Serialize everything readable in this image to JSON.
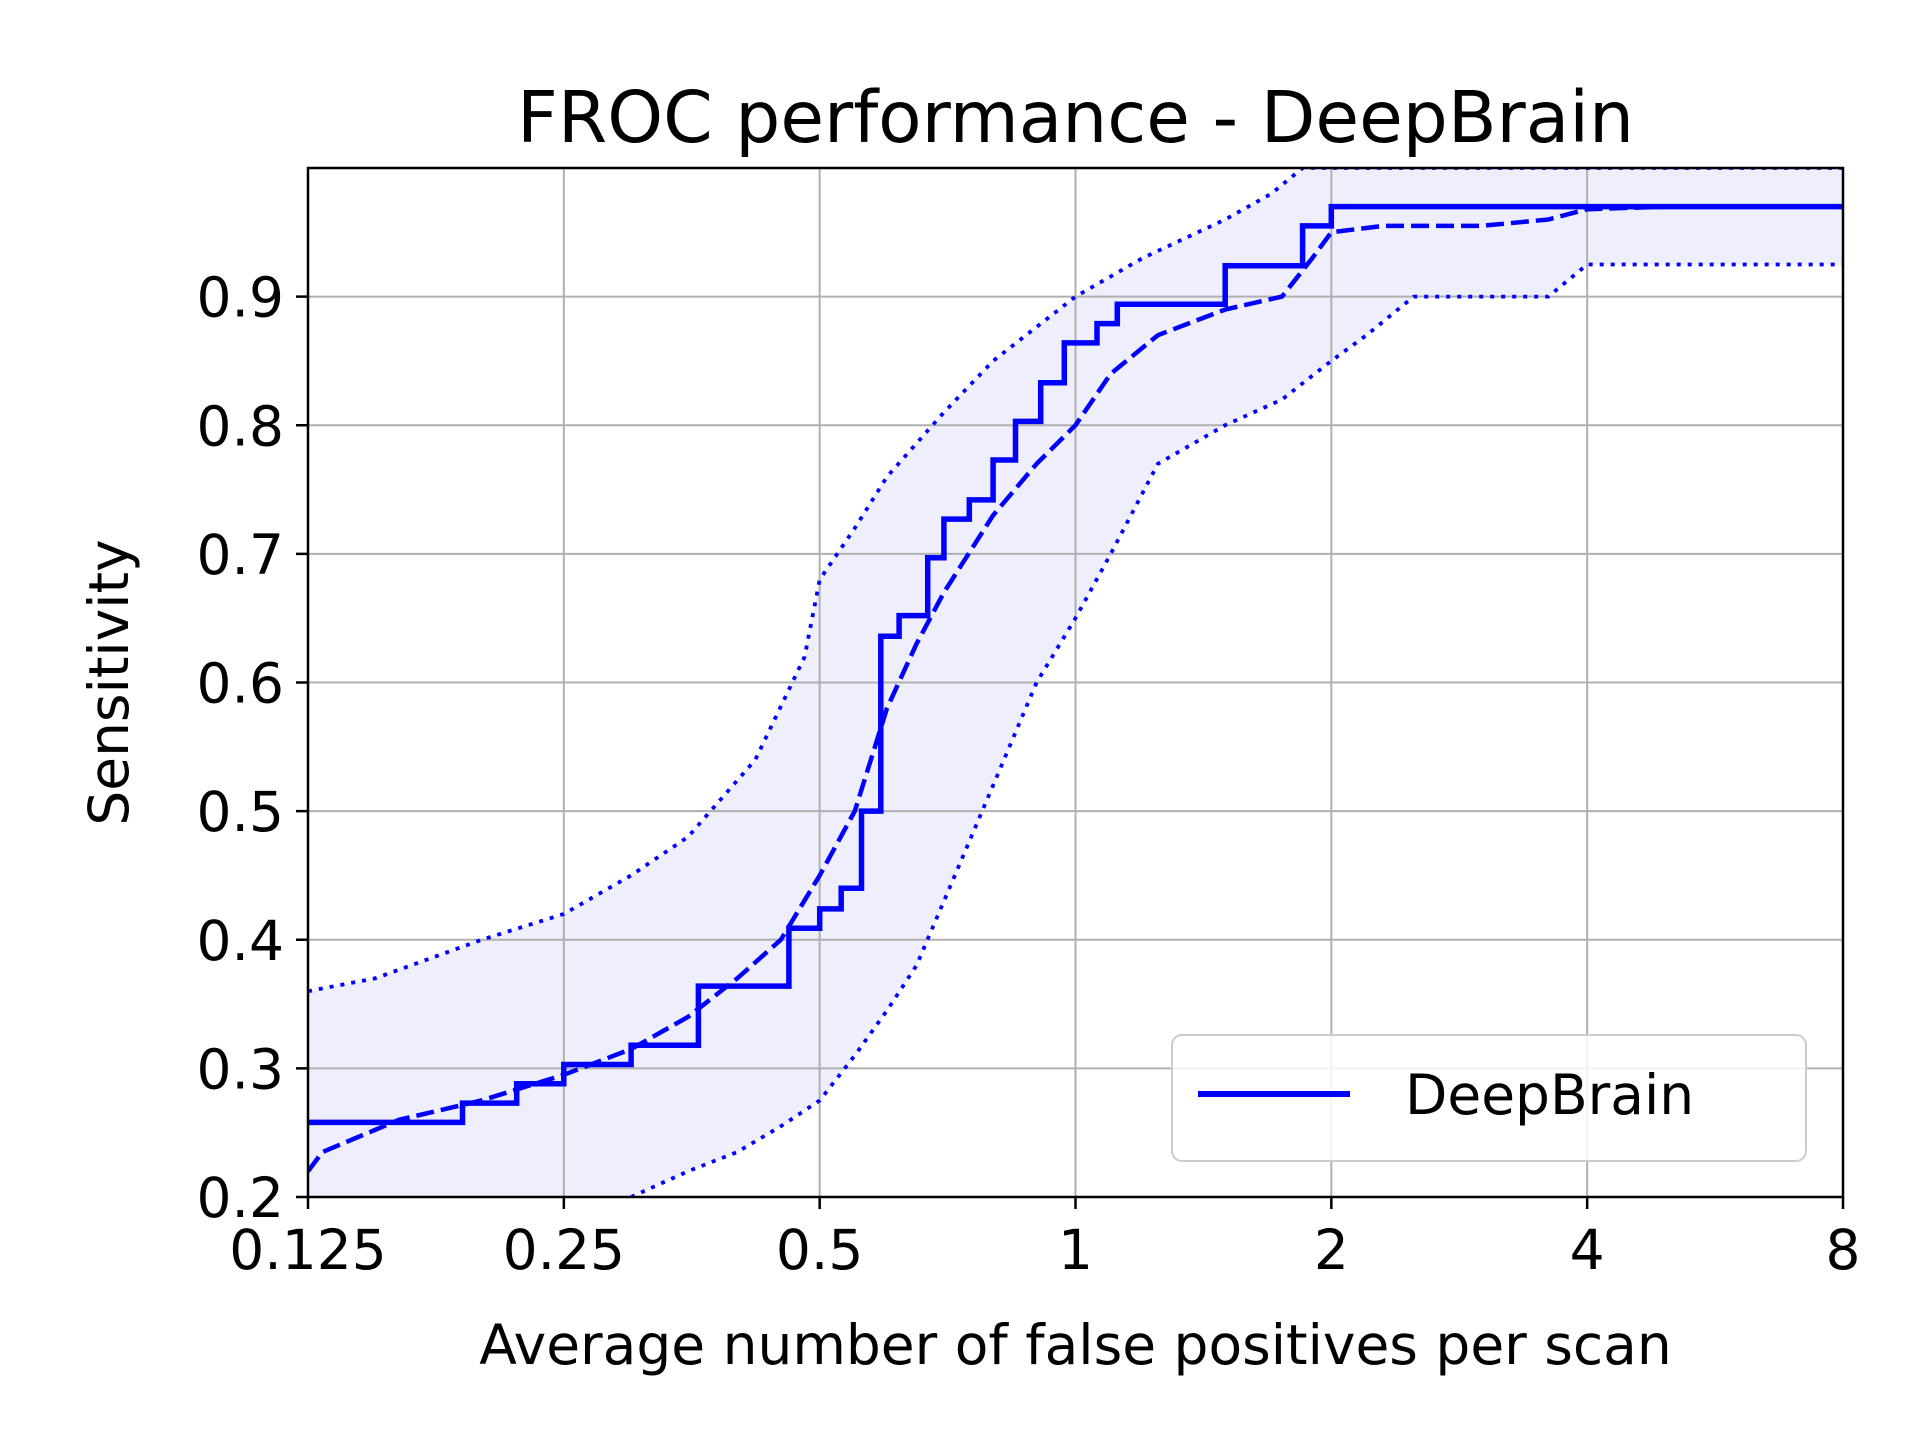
{
  "chart_data": {
    "type": "line",
    "title": "FROC performance - DeepBrain",
    "xlabel": "Average number of false positives per scan",
    "ylabel": "Sensitivity",
    "xscale": "log2",
    "xlim": [
      0.125,
      8
    ],
    "ylim": [
      0.2,
      1.0
    ],
    "xticks": [
      0.125,
      0.25,
      0.5,
      1,
      2,
      4,
      8
    ],
    "xtick_labels": [
      "0.125",
      "0.25",
      "0.5",
      "1",
      "2",
      "4",
      "8"
    ],
    "yticks": [
      0.2,
      0.3,
      0.4,
      0.5,
      0.6,
      0.7,
      0.8,
      0.9
    ],
    "ytick_labels": [
      "0.2",
      "0.3",
      "0.4",
      "0.5",
      "0.6",
      "0.7",
      "0.8",
      "0.9"
    ],
    "grid": true,
    "legend": {
      "position": "lower-right",
      "entries": [
        "DeepBrain"
      ]
    },
    "colors": {
      "series": "#0000ff",
      "band": "#e8e8fb"
    },
    "series": [
      {
        "name": "DeepBrain",
        "style": "solid",
        "x": [
          0.125,
          0.19,
          0.19,
          0.22,
          0.22,
          0.25,
          0.25,
          0.3,
          0.3,
          0.36,
          0.36,
          0.46,
          0.46,
          0.5,
          0.5,
          0.53,
          0.53,
          0.56,
          0.56,
          0.59,
          0.59,
          0.62,
          0.62,
          0.67,
          0.67,
          0.7,
          0.7,
          0.75,
          0.75,
          0.8,
          0.8,
          0.85,
          0.85,
          0.91,
          0.91,
          0.97,
          0.97,
          1.06,
          1.06,
          1.12,
          1.12,
          1.5,
          1.5,
          1.85,
          1.85,
          2.0,
          2.0,
          3.6,
          3.6,
          8.0
        ],
        "y": [
          0.258,
          0.258,
          0.273,
          0.273,
          0.288,
          0.288,
          0.303,
          0.303,
          0.318,
          0.318,
          0.364,
          0.364,
          0.409,
          0.409,
          0.424,
          0.424,
          0.44,
          0.44,
          0.5,
          0.5,
          0.636,
          0.636,
          0.652,
          0.652,
          0.697,
          0.697,
          0.727,
          0.727,
          0.742,
          0.742,
          0.773,
          0.773,
          0.803,
          0.803,
          0.833,
          0.833,
          0.864,
          0.864,
          0.879,
          0.879,
          0.894,
          0.894,
          0.924,
          0.924,
          0.955,
          0.955,
          0.97,
          0.97,
          0.97,
          0.97
        ]
      },
      {
        "style": "dashed",
        "x": [
          0.125,
          0.13,
          0.16,
          0.2,
          0.25,
          0.3,
          0.35,
          0.4,
          0.45,
          0.5,
          0.55,
          0.6,
          0.65,
          0.7,
          0.8,
          0.9,
          1.0,
          1.1,
          1.25,
          1.5,
          1.75,
          1.9,
          2.0,
          2.3,
          3.0,
          3.6,
          4.0,
          5.0,
          8.0
        ],
        "y": [
          0.22,
          0.235,
          0.26,
          0.275,
          0.295,
          0.315,
          0.34,
          0.37,
          0.4,
          0.45,
          0.5,
          0.58,
          0.63,
          0.67,
          0.73,
          0.77,
          0.8,
          0.84,
          0.87,
          0.89,
          0.9,
          0.93,
          0.95,
          0.955,
          0.955,
          0.96,
          0.968,
          0.97,
          0.97
        ]
      },
      {
        "style": "dotted",
        "x": [
          0.125,
          0.15,
          0.2,
          0.25,
          0.3,
          0.35,
          0.42,
          0.48,
          0.5,
          0.55,
          0.6,
          0.7,
          0.8,
          1.0,
          1.2,
          1.5,
          1.7,
          1.85,
          2.0,
          4.0,
          8.0
        ],
        "y": [
          0.36,
          0.37,
          0.4,
          0.42,
          0.45,
          0.48,
          0.54,
          0.62,
          0.68,
          0.72,
          0.76,
          0.81,
          0.85,
          0.9,
          0.93,
          0.96,
          0.98,
          1.0,
          1.0,
          1.0,
          1.0
        ]
      },
      {
        "style": "dotted",
        "x": [
          0.3,
          0.35,
          0.4,
          0.45,
          0.5,
          0.55,
          0.6,
          0.65,
          0.7,
          0.8,
          0.9,
          1.0,
          1.1,
          1.25,
          1.5,
          1.75,
          2.0,
          2.2,
          2.5,
          3.0,
          3.6,
          4.0,
          8.0
        ],
        "y": [
          0.2,
          0.22,
          0.235,
          0.255,
          0.275,
          0.31,
          0.345,
          0.38,
          0.43,
          0.52,
          0.6,
          0.65,
          0.7,
          0.77,
          0.8,
          0.82,
          0.85,
          0.87,
          0.9,
          0.9,
          0.9,
          0.925,
          0.925
        ]
      }
    ]
  }
}
